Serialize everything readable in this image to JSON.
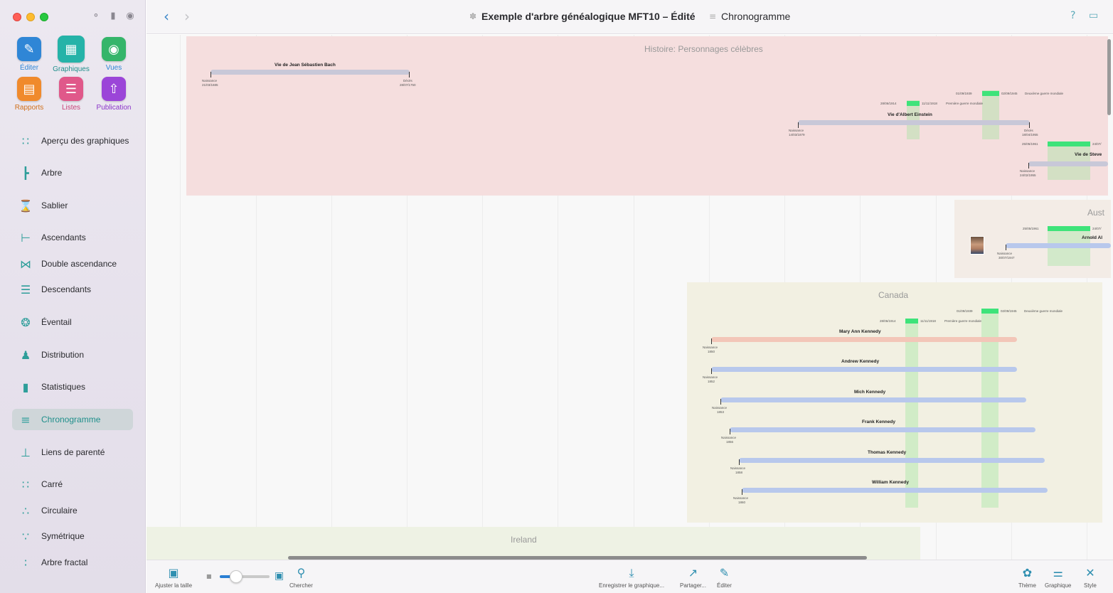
{
  "window": {
    "document_title": "Exemple d'arbre généalogique MFT10 – Édité",
    "view_title": "Chronogramme"
  },
  "tools": [
    {
      "label": "Éditer",
      "icon": "pencil-icon",
      "color": "#2f86d6"
    },
    {
      "label": "Graphiques",
      "icon": "charts-icon",
      "color": "#25b3a8"
    },
    {
      "label": "Vues",
      "icon": "eye-icon",
      "color": "#35b56a"
    },
    {
      "label": "Rapports",
      "icon": "report-icon",
      "color": "#f08a2c"
    },
    {
      "label": "Listes",
      "icon": "list-icon",
      "color": "#e0588a"
    },
    {
      "label": "Publication",
      "icon": "publish-icon",
      "color": "#9b45d8"
    }
  ],
  "sidebar": {
    "items": [
      {
        "label": "Aperçu des graphiques",
        "icon": "grid-icon"
      },
      {
        "label": "Arbre",
        "icon": "tree-icon"
      },
      {
        "label": "Sablier",
        "icon": "hourglass-icon"
      },
      {
        "label": "Ascendants",
        "icon": "ancestors-icon"
      },
      {
        "label": "Double ascendance",
        "icon": "double-ancestry-icon"
      },
      {
        "label": "Descendants",
        "icon": "descendants-icon"
      },
      {
        "label": "Éventail",
        "icon": "fan-icon"
      },
      {
        "label": "Distribution",
        "icon": "distribution-icon"
      },
      {
        "label": "Statistiques",
        "icon": "statistics-icon"
      },
      {
        "label": "Chronogramme",
        "icon": "timeline-icon",
        "selected": true
      },
      {
        "label": "Liens de parenté",
        "icon": "relationship-icon"
      },
      {
        "label": "Carré",
        "icon": "square-icon"
      },
      {
        "label": "Circulaire",
        "icon": "circular-icon"
      },
      {
        "label": "Symétrique",
        "icon": "symmetric-icon"
      },
      {
        "label": "Arbre fractal",
        "icon": "fractal-tree-icon"
      }
    ]
  },
  "timeline": {
    "groups": {
      "history": "Histoire: Personnages célèbres",
      "australia": "Aust",
      "canada": "Canada",
      "ireland": "Ireland"
    },
    "events": {
      "ww1_start": "28/06/1914",
      "ww1_end": "11/11/1918",
      "ww1_label": "Première guerre mondiale",
      "ww2_start": "01/09/1939",
      "ww2_end": "02/09/1945",
      "ww2_label": "Deuxième guerre mondiale",
      "other_start": "25/05/1961",
      "other_end": "24/07/"
    },
    "people": {
      "bach": {
        "name": "Vie de Jean Sébastien Bach",
        "birth_label": "Naissance",
        "birth_date": "21/03/1685",
        "death_label": "Décès",
        "death_date": "28/07/1750"
      },
      "einstein": {
        "name": "Vie d'Albert Einstein",
        "birth_label": "Naissance",
        "birth_date": "14/03/1879",
        "death_label": "Décès",
        "death_date": "18/04/1955"
      },
      "steve": {
        "name": "Vie de Steve",
        "birth_label": "Naissance",
        "birth_date": "24/02/1955"
      },
      "arnold": {
        "name": "Arnold Al",
        "birth_label": "Naissance",
        "birth_date": "30/07/1947"
      },
      "kennedys": [
        {
          "name": "Mary Ann Kennedy",
          "birth_label": "Naissance",
          "birth_date": "1850"
        },
        {
          "name": "Andrew Kennedy",
          "birth_label": "Naissance",
          "birth_date": "1852"
        },
        {
          "name": "Mich Kennedy",
          "birth_label": "Naissance",
          "birth_date": "1853"
        },
        {
          "name": "Frank Kennedy",
          "birth_label": "Naissance",
          "birth_date": "1856"
        },
        {
          "name": "Thomas Kennedy",
          "birth_label": "Naissance",
          "birth_date": "1858"
        },
        {
          "name": "William Kennedy",
          "birth_label": "Naissance",
          "birth_date": "1860"
        }
      ]
    }
  },
  "bottom_toolbar": {
    "fit_size": "Ajuster la taille",
    "search": "Chercher",
    "save_chart": "Enregistrer le graphique...",
    "share": "Partager...",
    "edit": "Éditer",
    "theme": "Thème",
    "chart": "Graphique",
    "style": "Style"
  }
}
